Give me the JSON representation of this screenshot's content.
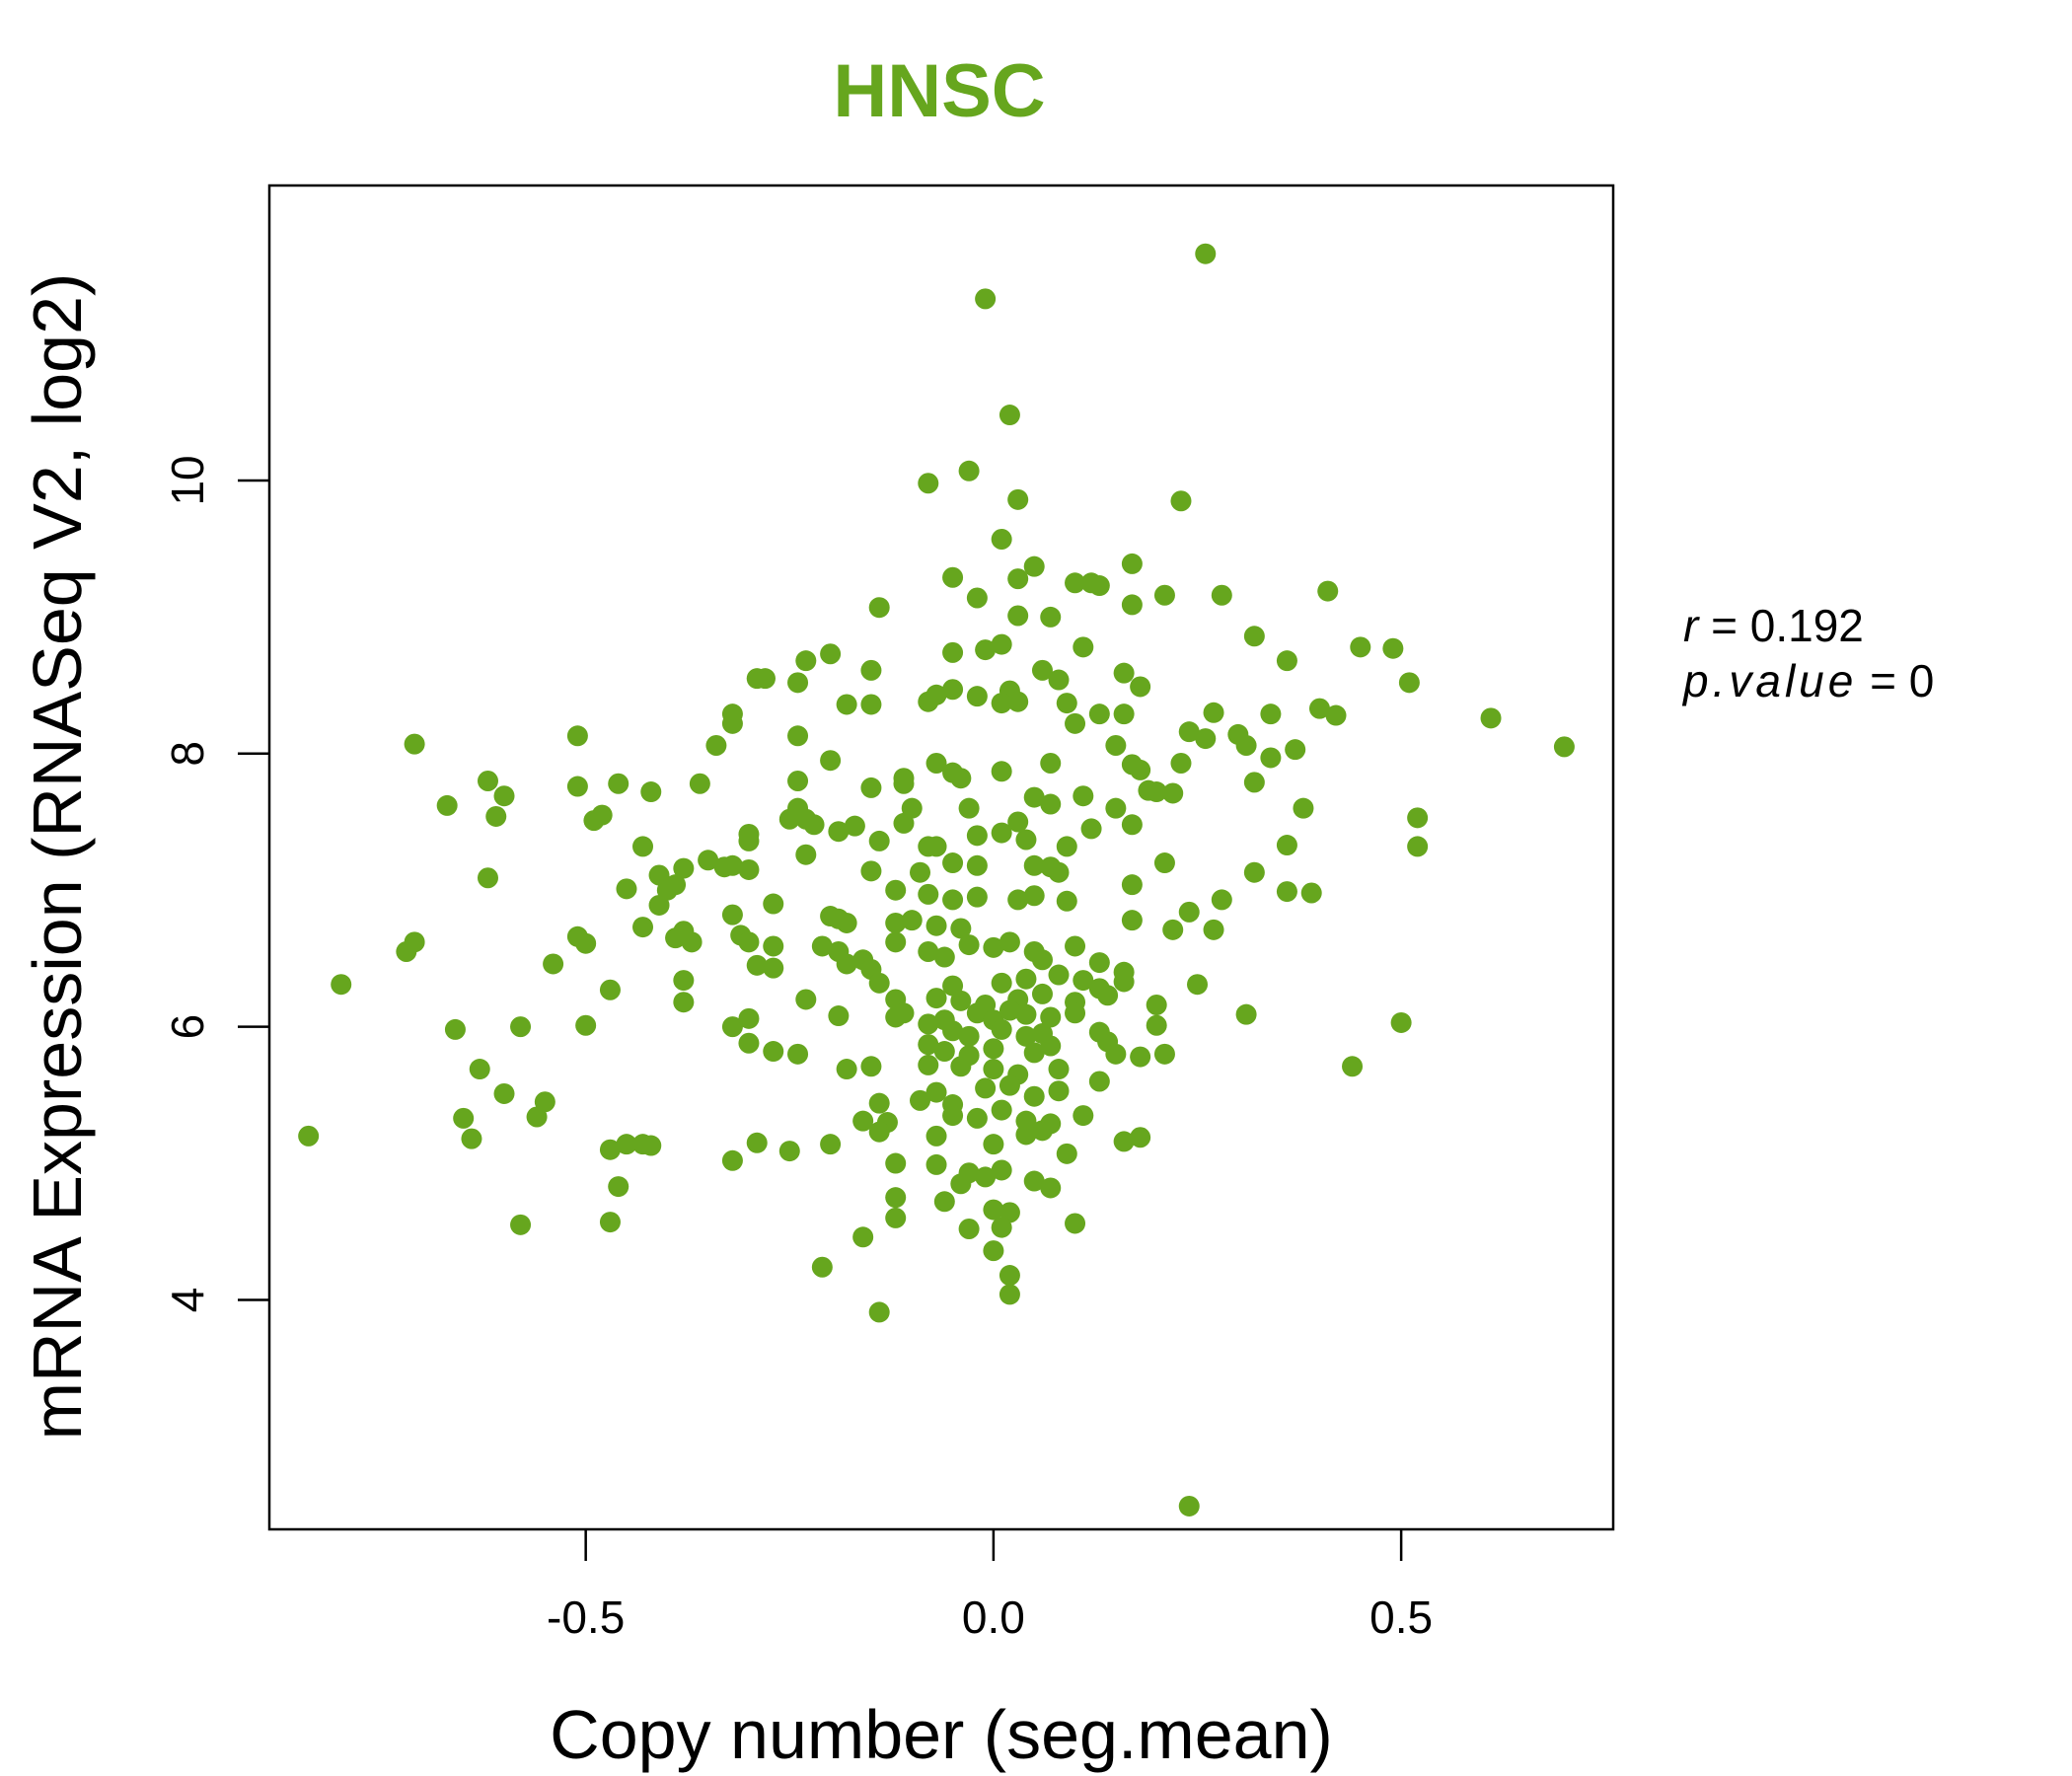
{
  "colors": {
    "accent": "#66A61E",
    "axis": "#000000"
  },
  "stats": {
    "r_label": "r",
    "r_value": "0.192",
    "p_label": "p.value",
    "p_value": "0"
  },
  "chart_data": {
    "type": "scatter",
    "title": "HNSC",
    "xlabel": "Copy number (seg.mean)",
    "ylabel": "mRNA Expression (RNASeq V2, log2)",
    "xlim": [
      -0.888,
      0.76
    ],
    "ylim": [
      2.32,
      12.16
    ],
    "xticks": [
      -0.5,
      0.0,
      0.5
    ],
    "xtick_labels": [
      "-0.5",
      "0.0",
      "0.5"
    ],
    "yticks": [
      4,
      6,
      8,
      10
    ],
    "ytick_labels": [
      "4",
      "6",
      "8",
      "10"
    ],
    "points": [
      [
        0.26,
        11.66
      ],
      [
        -0.01,
        11.33
      ],
      [
        0.02,
        10.48
      ],
      [
        -0.03,
        10.07
      ],
      [
        -0.08,
        9.98
      ],
      [
        0.03,
        9.86
      ],
      [
        0.23,
        9.85
      ],
      [
        0.01,
        9.57
      ],
      [
        0.17,
        9.39
      ],
      [
        0.05,
        9.37
      ],
      [
        -0.05,
        9.29
      ],
      [
        0.03,
        9.28
      ],
      [
        0.1,
        9.25
      ],
      [
        0.12,
        9.25
      ],
      [
        0.13,
        9.23
      ],
      [
        0.41,
        9.19
      ],
      [
        0.21,
        9.16
      ],
      [
        0.28,
        9.16
      ],
      [
        -0.02,
        9.14
      ],
      [
        0.17,
        9.09
      ],
      [
        -0.14,
        9.07
      ],
      [
        0.03,
        9.01
      ],
      [
        0.07,
        9.0
      ],
      [
        0.32,
        8.86
      ],
      [
        0.01,
        8.8
      ],
      [
        -0.01,
        8.76
      ],
      [
        0.45,
        8.78
      ],
      [
        0.49,
        8.77
      ],
      [
        -0.2,
        8.73
      ],
      [
        -0.23,
        8.68
      ],
      [
        0.36,
        8.68
      ],
      [
        0.11,
        8.78
      ],
      [
        -0.05,
        8.74
      ],
      [
        0.06,
        8.61
      ],
      [
        0.16,
        8.59
      ],
      [
        -0.15,
        8.61
      ],
      [
        -0.29,
        8.55
      ],
      [
        -0.28,
        8.55
      ],
      [
        -0.24,
        8.52
      ],
      [
        0.51,
        8.52
      ],
      [
        0.08,
        8.54
      ],
      [
        0.18,
        8.49
      ],
      [
        -0.07,
        8.43
      ],
      [
        0.02,
        8.46
      ],
      [
        -0.05,
        8.47
      ],
      [
        -0.02,
        8.42
      ],
      [
        0.01,
        8.37
      ],
      [
        -0.08,
        8.38
      ],
      [
        -0.18,
        8.36
      ],
      [
        -0.15,
        8.36
      ],
      [
        0.03,
        8.38
      ],
      [
        0.09,
        8.37
      ],
      [
        0.13,
        8.29
      ],
      [
        0.16,
        8.29
      ],
      [
        0.27,
        8.3
      ],
      [
        0.34,
        8.29
      ],
      [
        0.4,
        8.33
      ],
      [
        0.42,
        8.28
      ],
      [
        0.61,
        8.26
      ],
      [
        -0.32,
        8.29
      ],
      [
        -0.32,
        8.22
      ],
      [
        0.1,
        8.22
      ],
      [
        -0.24,
        8.13
      ],
      [
        0.3,
        8.14
      ],
      [
        -0.51,
        8.13
      ],
      [
        0.24,
        8.16
      ],
      [
        0.26,
        8.11
      ],
      [
        0.7,
        8.05
      ],
      [
        -0.34,
        8.06
      ],
      [
        0.37,
        8.03
      ],
      [
        0.15,
        8.06
      ],
      [
        0.31,
        8.06
      ],
      [
        0.34,
        7.97
      ],
      [
        -0.2,
        7.95
      ],
      [
        -0.07,
        7.93
      ],
      [
        0.07,
        7.93
      ],
      [
        0.23,
        7.93
      ],
      [
        0.17,
        7.92
      ],
      [
        0.18,
        7.88
      ],
      [
        0.01,
        7.87
      ],
      [
        -0.05,
        7.86
      ],
      [
        -0.04,
        7.82
      ],
      [
        -0.11,
        7.82
      ],
      [
        -0.11,
        7.78
      ],
      [
        0.32,
        7.79
      ],
      [
        -0.71,
        8.07
      ],
      [
        -0.62,
        7.8
      ],
      [
        -0.46,
        7.78
      ],
      [
        -0.36,
        7.78
      ],
      [
        -0.24,
        7.8
      ],
      [
        -0.51,
        7.76
      ],
      [
        -0.15,
        7.75
      ],
      [
        -0.42,
        7.72
      ],
      [
        0.19,
        7.73
      ],
      [
        0.2,
        7.72
      ],
      [
        0.22,
        7.71
      ],
      [
        0.11,
        7.69
      ],
      [
        0.05,
        7.68
      ],
      [
        -0.6,
        7.69
      ],
      [
        -0.67,
        7.62
      ],
      [
        0.07,
        7.63
      ],
      [
        0.38,
        7.6
      ],
      [
        0.15,
        7.6
      ],
      [
        -0.24,
        7.6
      ],
      [
        -0.1,
        7.6
      ],
      [
        -0.03,
        7.6
      ],
      [
        -0.61,
        7.54
      ],
      [
        -0.48,
        7.55
      ],
      [
        -0.49,
        7.51
      ],
      [
        -0.25,
        7.52
      ],
      [
        -0.23,
        7.52
      ],
      [
        -0.22,
        7.48
      ],
      [
        -0.17,
        7.47
      ],
      [
        -0.11,
        7.49
      ],
      [
        0.03,
        7.5
      ],
      [
        0.12,
        7.45
      ],
      [
        0.17,
        7.48
      ],
      [
        0.52,
        7.53
      ],
      [
        -0.19,
        7.43
      ],
      [
        -0.14,
        7.36
      ],
      [
        -0.07,
        7.32
      ],
      [
        -0.08,
        7.32
      ],
      [
        -0.02,
        7.4
      ],
      [
        0.01,
        7.42
      ],
      [
        0.04,
        7.37
      ],
      [
        0.09,
        7.32
      ],
      [
        0.36,
        7.33
      ],
      [
        0.52,
        7.32
      ],
      [
        -0.43,
        7.32
      ],
      [
        -0.3,
        7.36
      ],
      [
        -0.3,
        7.41
      ],
      [
        -0.23,
        7.26
      ],
      [
        -0.35,
        7.22
      ],
      [
        -0.33,
        7.17
      ],
      [
        -0.32,
        7.18
      ],
      [
        -0.3,
        7.15
      ],
      [
        -0.38,
        7.16
      ],
      [
        -0.41,
        7.11
      ],
      [
        -0.39,
        7.04
      ],
      [
        -0.4,
        7.0
      ],
      [
        -0.15,
        7.14
      ],
      [
        -0.09,
        7.13
      ],
      [
        -0.05,
        7.2
      ],
      [
        -0.02,
        7.18
      ],
      [
        0.05,
        7.18
      ],
      [
        0.07,
        7.17
      ],
      [
        0.08,
        7.13
      ],
      [
        0.17,
        7.04
      ],
      [
        0.21,
        7.2
      ],
      [
        0.32,
        7.13
      ],
      [
        0.36,
        6.99
      ],
      [
        0.39,
        6.98
      ],
      [
        -0.62,
        7.09
      ],
      [
        -0.45,
        7.01
      ],
      [
        -0.41,
        6.89
      ],
      [
        -0.12,
        7.0
      ],
      [
        -0.08,
        6.97
      ],
      [
        -0.05,
        6.93
      ],
      [
        -0.02,
        6.95
      ],
      [
        0.03,
        6.93
      ],
      [
        0.05,
        6.96
      ],
      [
        0.09,
        6.92
      ],
      [
        0.28,
        6.93
      ],
      [
        0.24,
        6.84
      ],
      [
        -0.27,
        6.9
      ],
      [
        -0.32,
        6.82
      ],
      [
        -0.2,
        6.81
      ],
      [
        -0.19,
        6.79
      ],
      [
        -0.18,
        6.76
      ],
      [
        -0.12,
        6.76
      ],
      [
        -0.1,
        6.78
      ],
      [
        -0.07,
        6.74
      ],
      [
        -0.04,
        6.72
      ],
      [
        0.17,
        6.78
      ],
      [
        -0.43,
        6.73
      ],
      [
        -0.38,
        6.7
      ],
      [
        -0.39,
        6.65
      ],
      [
        -0.37,
        6.62
      ],
      [
        -0.31,
        6.67
      ],
      [
        -0.3,
        6.62
      ],
      [
        -0.27,
        6.59
      ],
      [
        -0.21,
        6.59
      ],
      [
        -0.19,
        6.55
      ],
      [
        -0.12,
        6.62
      ],
      [
        -0.08,
        6.55
      ],
      [
        -0.06,
        6.51
      ],
      [
        -0.03,
        6.6
      ],
      [
        0.0,
        6.58
      ],
      [
        0.02,
        6.62
      ],
      [
        0.05,
        6.55
      ],
      [
        0.06,
        6.49
      ],
      [
        0.1,
        6.59
      ],
      [
        0.13,
        6.47
      ],
      [
        0.16,
        6.4
      ],
      [
        0.22,
        6.71
      ],
      [
        0.27,
        6.71
      ],
      [
        -0.51,
        6.66
      ],
      [
        -0.5,
        6.61
      ],
      [
        -0.71,
        6.62
      ],
      [
        -0.72,
        6.55
      ],
      [
        -0.54,
        6.46
      ],
      [
        -0.29,
        6.45
      ],
      [
        -0.27,
        6.43
      ],
      [
        -0.18,
        6.46
      ],
      [
        -0.16,
        6.49
      ],
      [
        -0.15,
        6.42
      ],
      [
        -0.14,
        6.32
      ],
      [
        -0.05,
        6.3
      ],
      [
        0.01,
        6.32
      ],
      [
        0.04,
        6.35
      ],
      [
        0.08,
        6.38
      ],
      [
        0.11,
        6.34
      ],
      [
        0.13,
        6.28
      ],
      [
        0.16,
        6.33
      ],
      [
        0.25,
        6.31
      ],
      [
        -0.8,
        6.31
      ],
      [
        -0.47,
        6.27
      ],
      [
        -0.38,
        6.34
      ],
      [
        -0.38,
        6.18
      ],
      [
        -0.23,
        6.2
      ],
      [
        -0.12,
        6.2
      ],
      [
        -0.07,
        6.21
      ],
      [
        -0.04,
        6.19
      ],
      [
        -0.01,
        6.16
      ],
      [
        0.03,
        6.2
      ],
      [
        0.06,
        6.24
      ],
      [
        0.1,
        6.18
      ],
      [
        0.14,
        6.23
      ],
      [
        0.2,
        6.16
      ],
      [
        -0.11,
        6.1
      ],
      [
        -0.06,
        6.05
      ],
      [
        -0.02,
        6.1
      ],
      [
        0.0,
        6.05
      ],
      [
        0.02,
        6.12
      ],
      [
        0.04,
        6.09
      ],
      [
        0.07,
        6.07
      ],
      [
        0.1,
        6.1
      ],
      [
        0.31,
        6.09
      ],
      [
        -0.66,
        5.98
      ],
      [
        -0.58,
        6.0
      ],
      [
        -0.5,
        6.01
      ],
      [
        -0.32,
        6.0
      ],
      [
        -0.3,
        6.06
      ],
      [
        -0.19,
        6.08
      ],
      [
        -0.12,
        6.07
      ],
      [
        -0.08,
        6.02
      ],
      [
        -0.05,
        5.97
      ],
      [
        -0.03,
        5.93
      ],
      [
        0.01,
        5.98
      ],
      [
        0.04,
        5.93
      ],
      [
        0.06,
        5.95
      ],
      [
        0.13,
        5.96
      ],
      [
        0.14,
        5.89
      ],
      [
        0.2,
        6.01
      ],
      [
        0.5,
        6.03
      ],
      [
        -0.3,
        5.88
      ],
      [
        -0.27,
        5.82
      ],
      [
        -0.24,
        5.8
      ],
      [
        -0.08,
        5.87
      ],
      [
        -0.06,
        5.82
      ],
      [
        -0.03,
        5.79
      ],
      [
        0.0,
        5.84
      ],
      [
        0.05,
        5.81
      ],
      [
        0.07,
        5.86
      ],
      [
        0.15,
        5.8
      ],
      [
        0.18,
        5.78
      ],
      [
        0.21,
        5.8
      ],
      [
        -0.63,
        5.69
      ],
      [
        -0.18,
        5.69
      ],
      [
        -0.15,
        5.71
      ],
      [
        -0.08,
        5.72
      ],
      [
        -0.04,
        5.71
      ],
      [
        0.0,
        5.69
      ],
      [
        0.03,
        5.65
      ],
      [
        0.08,
        5.69
      ],
      [
        0.13,
        5.6
      ],
      [
        0.44,
        5.71
      ],
      [
        -0.6,
        5.51
      ],
      [
        -0.55,
        5.45
      ],
      [
        -0.14,
        5.44
      ],
      [
        -0.09,
        5.46
      ],
      [
        -0.07,
        5.52
      ],
      [
        -0.05,
        5.43
      ],
      [
        -0.01,
        5.55
      ],
      [
        0.02,
        5.57
      ],
      [
        0.05,
        5.49
      ],
      [
        0.08,
        5.53
      ],
      [
        -0.65,
        5.33
      ],
      [
        -0.56,
        5.34
      ],
      [
        -0.16,
        5.31
      ],
      [
        -0.13,
        5.3
      ],
      [
        -0.05,
        5.35
      ],
      [
        -0.02,
        5.33
      ],
      [
        0.01,
        5.39
      ],
      [
        0.04,
        5.31
      ],
      [
        0.07,
        5.29
      ],
      [
        0.11,
        5.35
      ],
      [
        -0.84,
        5.2
      ],
      [
        -0.64,
        5.18
      ],
      [
        -0.45,
        5.14
      ],
      [
        -0.43,
        5.14
      ],
      [
        -0.42,
        5.13
      ],
      [
        -0.47,
        5.1
      ],
      [
        -0.29,
        5.15
      ],
      [
        -0.25,
        5.09
      ],
      [
        -0.2,
        5.14
      ],
      [
        -0.14,
        5.23
      ],
      [
        -0.07,
        5.2
      ],
      [
        0.0,
        5.14
      ],
      [
        0.04,
        5.21
      ],
      [
        0.06,
        5.24
      ],
      [
        0.09,
        5.07
      ],
      [
        0.16,
        5.16
      ],
      [
        0.18,
        5.19
      ],
      [
        -0.32,
        5.02
      ],
      [
        -0.12,
        5.0
      ],
      [
        -0.07,
        4.99
      ],
      [
        -0.03,
        4.93
      ],
      [
        -0.01,
        4.9
      ],
      [
        0.01,
        4.95
      ],
      [
        0.05,
        4.87
      ],
      [
        0.07,
        4.82
      ],
      [
        -0.46,
        4.83
      ],
      [
        -0.12,
        4.75
      ],
      [
        -0.06,
        4.72
      ],
      [
        -0.04,
        4.85
      ],
      [
        0.0,
        4.66
      ],
      [
        0.02,
        4.64
      ],
      [
        -0.58,
        4.55
      ],
      [
        -0.47,
        4.57
      ],
      [
        -0.12,
        4.6
      ],
      [
        -0.03,
        4.52
      ],
      [
        0.01,
        4.53
      ],
      [
        0.1,
        4.56
      ],
      [
        -0.16,
        4.46
      ],
      [
        0.0,
        4.36
      ],
      [
        -0.21,
        4.24
      ],
      [
        0.02,
        4.18
      ],
      [
        0.02,
        4.04
      ],
      [
        -0.14,
        3.91
      ],
      [
        0.24,
        2.49
      ]
    ]
  }
}
